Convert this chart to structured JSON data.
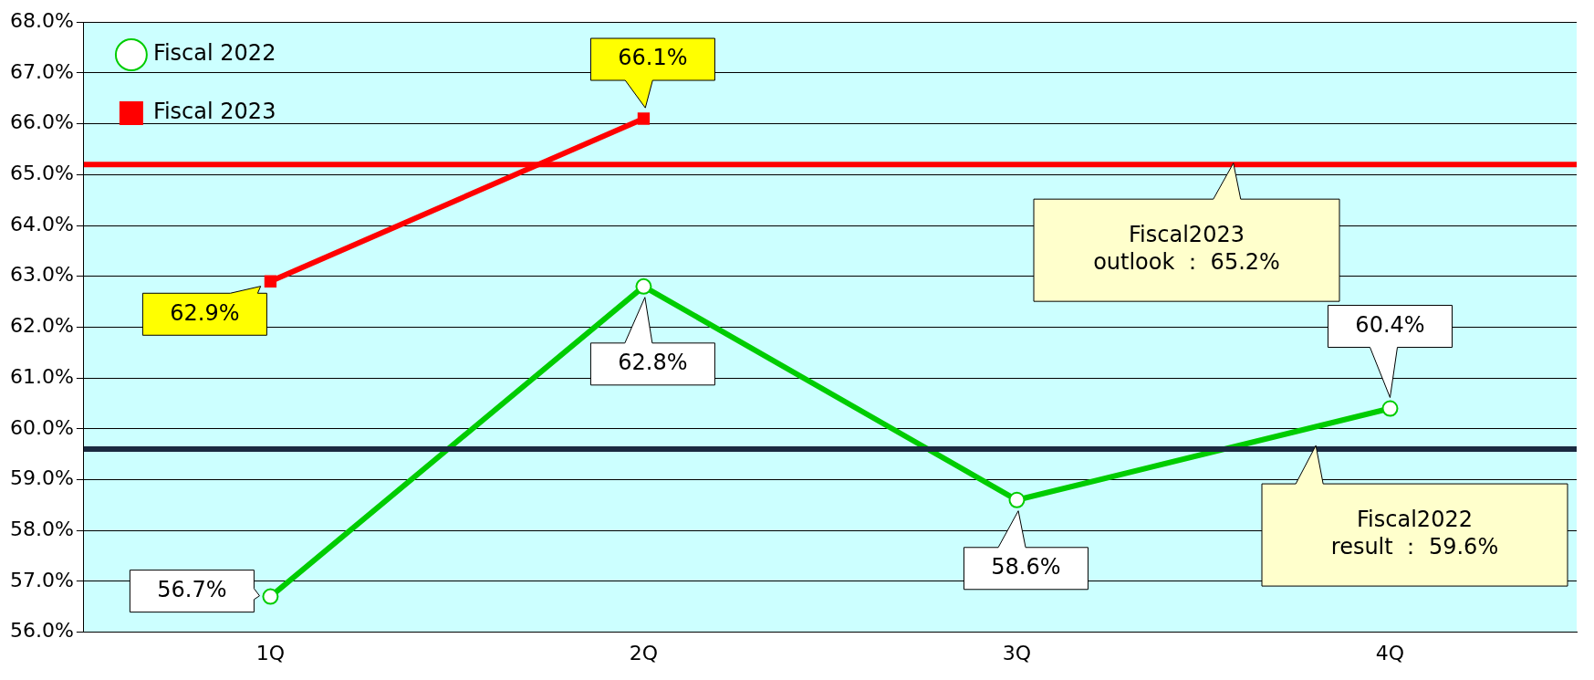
{
  "chart_data": {
    "type": "line",
    "categories": [
      "1Q",
      "2Q",
      "3Q",
      "4Q"
    ],
    "series": [
      {
        "name": "Fiscal 2022",
        "color": "#00cc00",
        "marker": "circle",
        "values": [
          56.7,
          62.8,
          58.6,
          60.4
        ],
        "value_labels": [
          "56.7%",
          "62.8%",
          "58.6%",
          "60.4%"
        ]
      },
      {
        "name": "Fiscal 2023",
        "color": "#ff0000",
        "marker": "square",
        "values": [
          62.9,
          66.1,
          null,
          null
        ],
        "value_labels": [
          "62.9%",
          "66.1%",
          null,
          null
        ]
      }
    ],
    "ylim": [
      56,
      68
    ],
    "yticks": [
      {
        "value": 56,
        "label": "56.0%"
      },
      {
        "value": 57,
        "label": "57.0%"
      },
      {
        "value": 58,
        "label": "58.0%"
      },
      {
        "value": 59,
        "label": "59.0%"
      },
      {
        "value": 60,
        "label": "60.0%"
      },
      {
        "value": 61,
        "label": "61.0%"
      },
      {
        "value": 62,
        "label": "62.0%"
      },
      {
        "value": 63,
        "label": "63.0%"
      },
      {
        "value": 64,
        "label": "64.0%"
      },
      {
        "value": 65,
        "label": "65.0%"
      },
      {
        "value": 66,
        "label": "66.0%"
      },
      {
        "value": 67,
        "label": "67.0%"
      },
      {
        "value": 68,
        "label": "68.0%"
      }
    ],
    "ref_lines": [
      {
        "axis": "y",
        "value": 65.2,
        "label": "Fiscal2023\noutlook ： 65.2%",
        "color": "#ff0000"
      },
      {
        "axis": "y",
        "value": 59.6,
        "label": "Fiscal2022\nresult ： 59.6%",
        "color": "#1a2a40"
      }
    ],
    "grid": "y",
    "legend": "top left"
  }
}
